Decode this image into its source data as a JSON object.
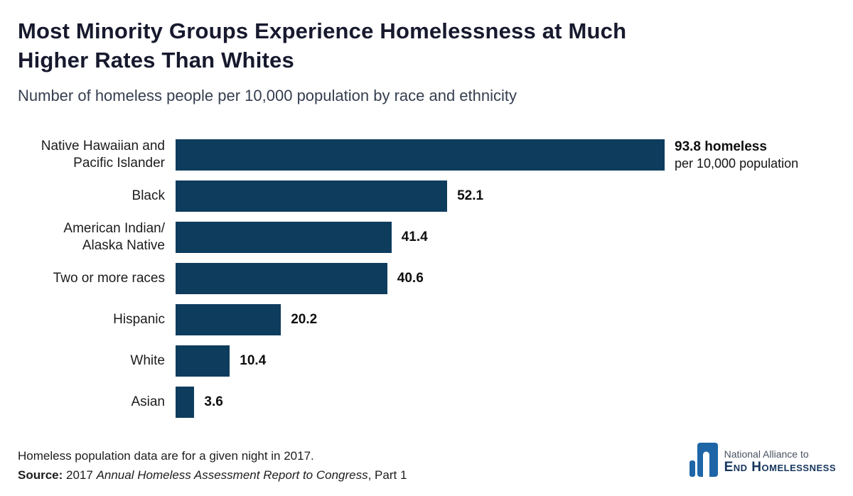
{
  "colors": {
    "bar": "#0e3c5d",
    "title_text": "#17192e",
    "logo_blue": "#1e65a7",
    "logo_navy": "#16365c"
  },
  "chart_data": {
    "type": "bar",
    "orientation": "horizontal",
    "title": "Most Minority Groups Experience Homelessness at Much Higher Rates Than Whites",
    "title_lines": [
      "Most Minority Groups Experience Homelessness at Much",
      "Higher Rates Than Whites"
    ],
    "subtitle": "Number of homeless people per 10,000 population by race and ethnicity",
    "categories": [
      "Native Hawaiian and\nPacific Islander",
      "Black",
      "American Indian/\nAlaska Native",
      "Two or more races",
      "Hispanic",
      "White",
      "Asian"
    ],
    "values": [
      93.8,
      52.1,
      41.4,
      40.6,
      20.2,
      10.4,
      3.6
    ],
    "value_display": [
      "93.8 homeless",
      "52.1",
      "41.4",
      "40.6",
      "20.2",
      "10.4",
      "3.6"
    ],
    "first_bar_subtext": "per 10,000 population",
    "bar_color": "#0e3c5d",
    "axis_max": 93.8,
    "grid": false,
    "legend": false
  },
  "footer": {
    "note": "Homeless population data are for a given night in 2017.",
    "source_label": "Source:",
    "source_pre": " 2017 ",
    "source_italic": "Annual Homeless Assessment Report to Congress",
    "source_post": ", Part 1"
  },
  "logo": {
    "line1": "National Alliance to",
    "line2": "End Homelessness"
  }
}
